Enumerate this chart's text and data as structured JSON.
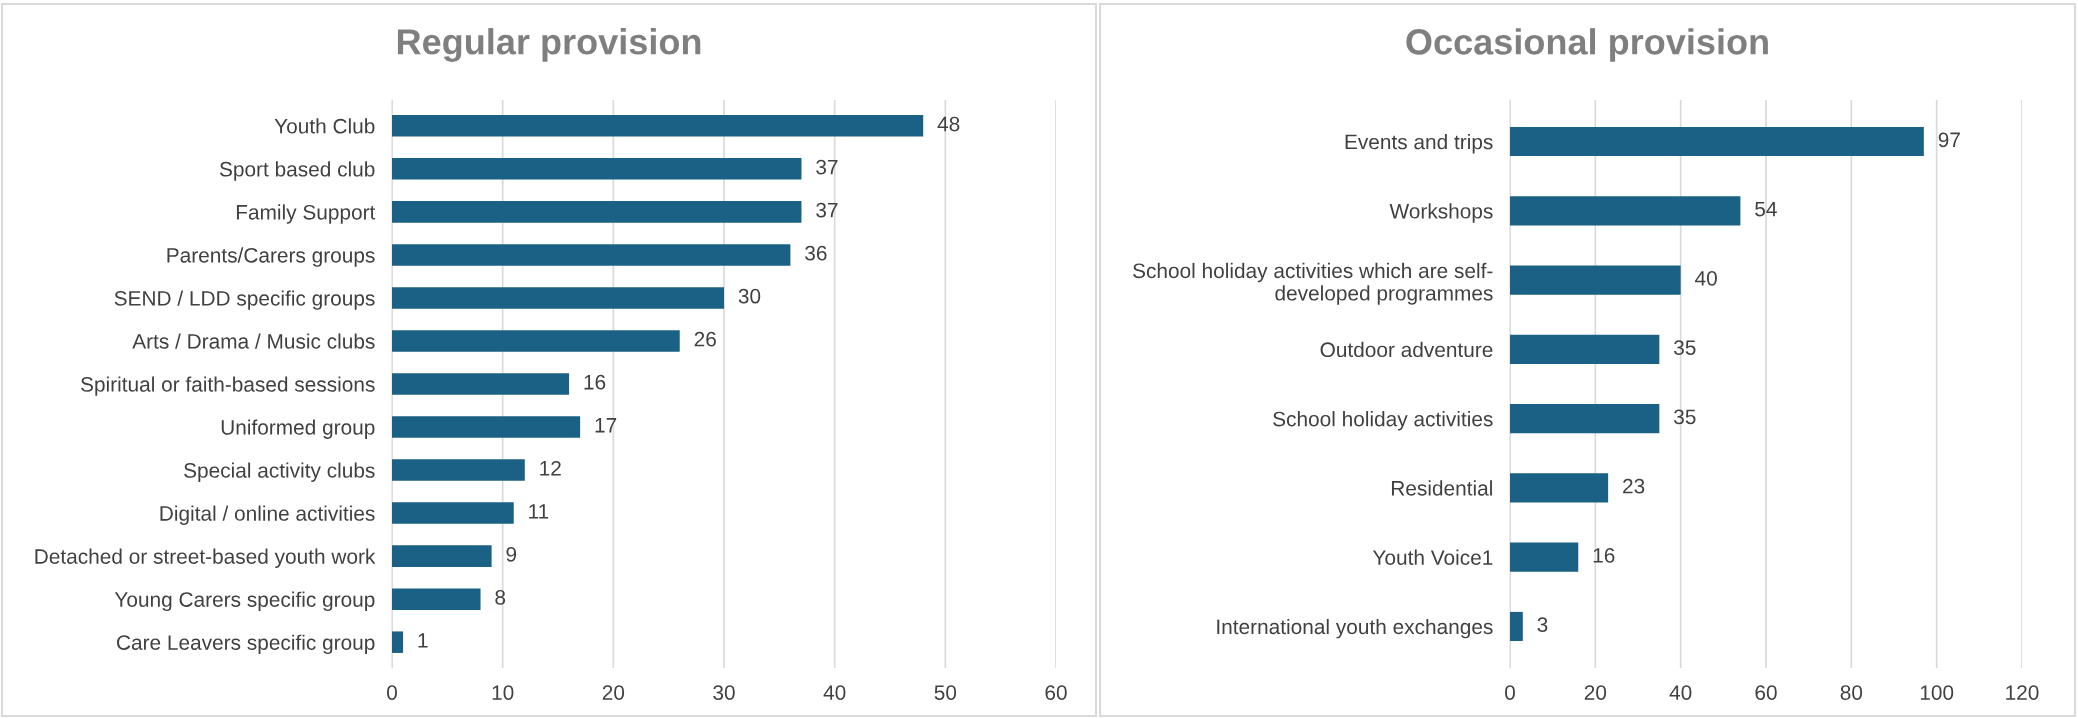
{
  "chart_data": [
    {
      "type": "bar",
      "orientation": "horizontal",
      "title": "Regular provision",
      "categories": [
        "Youth Club",
        "Sport based club",
        "Family Support",
        "Parents/Carers groups",
        "SEND / LDD specific groups",
        "Arts / Drama / Music clubs",
        "Spiritual or faith-based sessions",
        "Uniformed group",
        "Special activity clubs",
        "Digital / online activities",
        "Detached or street-based youth work",
        "Young Carers specific group",
        "Care Leavers specific group"
      ],
      "values": [
        48,
        37,
        37,
        36,
        30,
        26,
        16,
        17,
        12,
        11,
        9,
        8,
        1
      ],
      "color": "#1b6185",
      "xlim": [
        0,
        60
      ],
      "xticks": [
        0,
        10,
        20,
        30,
        40,
        50,
        60
      ],
      "grid": "x",
      "data_labels": true
    },
    {
      "type": "bar",
      "orientation": "horizontal",
      "title": "Occasional provision",
      "categories": [
        "Events and trips",
        "Workshops",
        "School holiday activities which are self-developed programmes",
        "Outdoor adventure",
        "School holiday activities",
        "Residential",
        "Youth Voice1",
        "International youth exchanges"
      ],
      "values": [
        97,
        54,
        40,
        35,
        35,
        23,
        16,
        3
      ],
      "color": "#1b6185",
      "xlim": [
        0,
        120
      ],
      "xticks": [
        0,
        20,
        40,
        60,
        80,
        100,
        120
      ],
      "grid": "x",
      "data_labels": true
    }
  ]
}
